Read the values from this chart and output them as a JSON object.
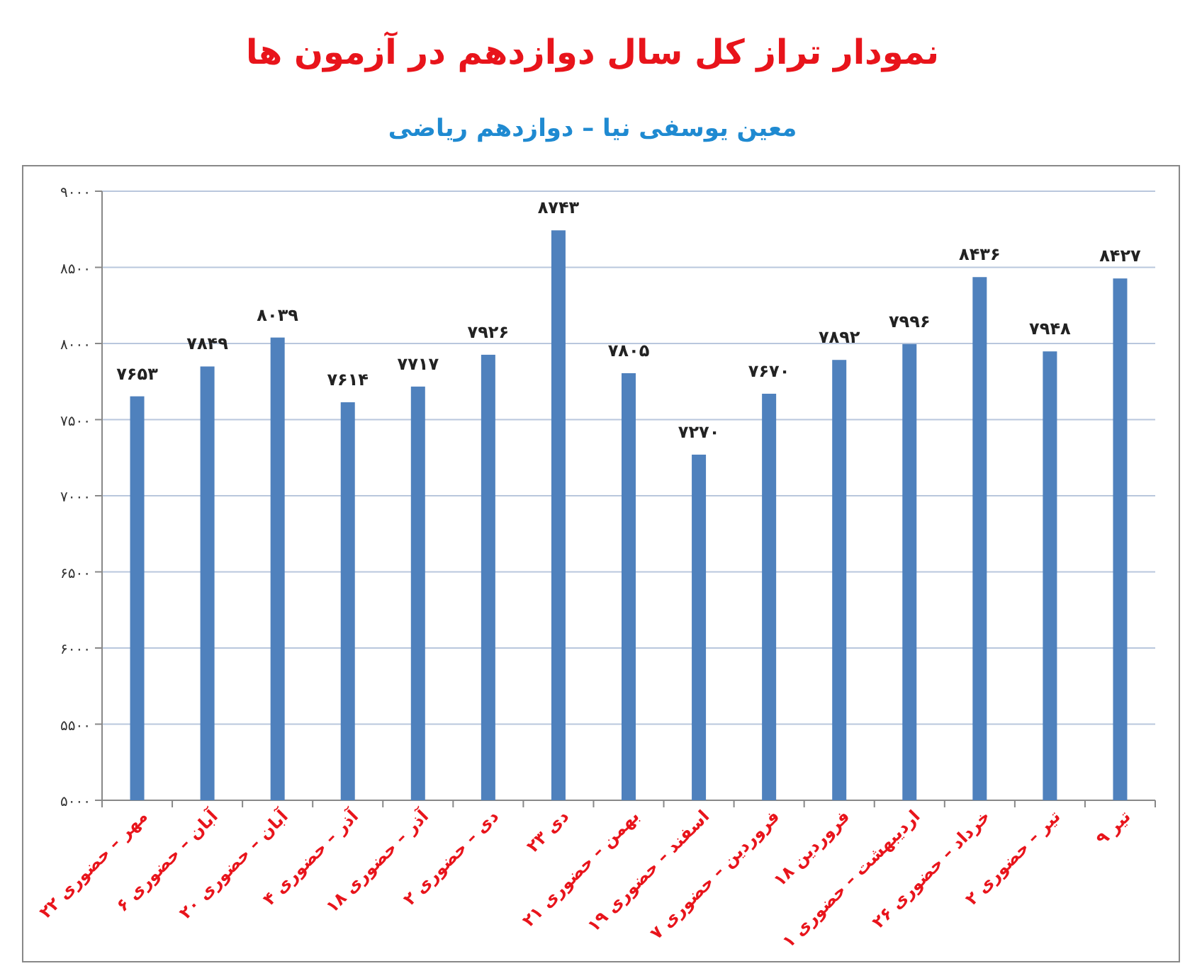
{
  "chart_data": {
    "type": "bar",
    "title": "نمودار تراز کل سال دوازدهم در آزمون ها",
    "subtitle": "معین یوسفی نیا – دوازدهم ریاضی",
    "categories": [
      "۲۲ مهر – حضوری",
      "۶ آبان – حضوری",
      "۲۰ آبان – حضوری",
      "۴ آذر – حضوری",
      "۱۸ آذر – حضوری",
      "۲ دی – حضوری",
      "۲۳ دی",
      "۲۱ بهمن – حضوری",
      "۱۹ اسفند – حضوری",
      "۷ فروردین – حضوری",
      "۱۸ فروردین",
      "۱ اردیبهشت – حضوری",
      "۲۶ خرداد – حضوری",
      "۲ تیر – حضوری",
      "۹ تیر"
    ],
    "values": [
      7653,
      7849,
      8039,
      7614,
      7717,
      7926,
      8743,
      7805,
      7270,
      7670,
      7892,
      7996,
      8436,
      7948,
      8427
    ],
    "value_labels": [
      "۷۶۵۳",
      "۷۸۴۹",
      "۸۰۳۹",
      "۷۶۱۴",
      "۷۷۱۷",
      "۷۹۲۶",
      "۸۷۴۳",
      "۷۸۰۵",
      "۷۲۷۰",
      "۷۶۷۰",
      "۷۸۹۲",
      "۷۹۹۶",
      "۸۴۳۶",
      "۷۹۴۸",
      "۸۴۲۷"
    ],
    "color": "#4f81bd",
    "ylim": [
      5000,
      9000
    ],
    "yticks": [
      {
        "value": 5000,
        "label": "۵۰۰۰"
      },
      {
        "value": 5500,
        "label": "۵۵۰۰"
      },
      {
        "value": 6000,
        "label": "۶۰۰۰"
      },
      {
        "value": 6500,
        "label": "۶۵۰۰"
      },
      {
        "value": 7000,
        "label": "۷۰۰۰"
      },
      {
        "value": 7500,
        "label": "۷۵۰۰"
      },
      {
        "value": 8000,
        "label": "۸۰۰۰"
      },
      {
        "value": 8500,
        "label": "۸۵۰۰"
      },
      {
        "value": 9000,
        "label": "۹۰۰۰"
      }
    ],
    "grid": "y"
  }
}
